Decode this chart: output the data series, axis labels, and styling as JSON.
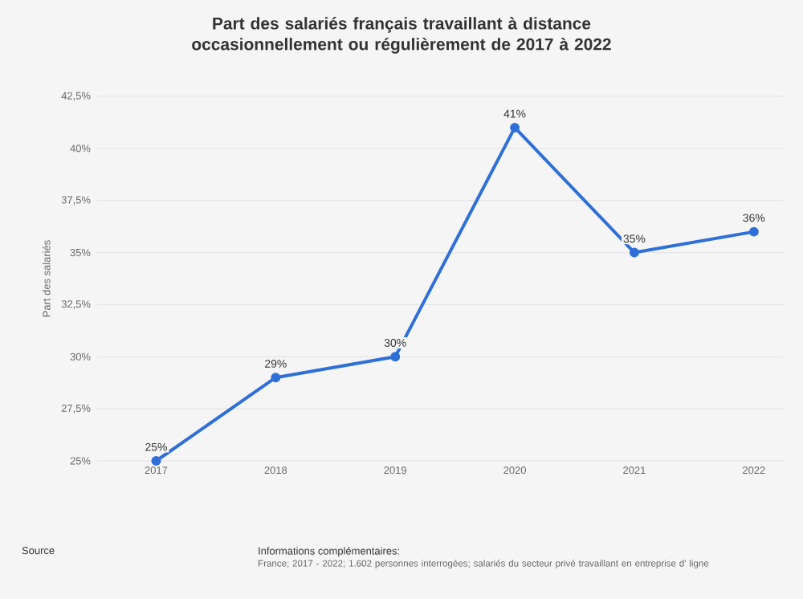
{
  "chart_data": {
    "type": "line",
    "title": "Part des salariés français travaillant à distance occasionnellement ou régulièrement de 2017 à 2022",
    "ylabel": "Part des salariés",
    "categories": [
      "2017",
      "2018",
      "2019",
      "2020",
      "2021",
      "2022"
    ],
    "series": [
      {
        "color": "#2f6fd8",
        "values": [
          25,
          29,
          30,
          41,
          35,
          36
        ],
        "value_labels": [
          "25%",
          "29%",
          "30%",
          "41%",
          "35%",
          "36%"
        ]
      }
    ],
    "ylim": [
      25,
      42.5
    ],
    "yticks": [
      {
        "value": 25,
        "label": "25%"
      },
      {
        "value": 27.5,
        "label": "27,5%"
      },
      {
        "value": 30,
        "label": "30%"
      },
      {
        "value": 32.5,
        "label": "32,5%"
      },
      {
        "value": 35,
        "label": "35%"
      },
      {
        "value": 37.5,
        "label": "37,5%"
      },
      {
        "value": 40,
        "label": "40%"
      },
      {
        "value": 42.5,
        "label": "42,5%"
      }
    ],
    "grid": "y",
    "marker": "circle",
    "line_style": "solid",
    "annotations": [
      "Source",
      "Informations complémentaires:",
      "France; 2017 - 2022; 1.602 personnes interrogées; salariés du secteur privé travaillant en entreprise d' ligne"
    ]
  }
}
